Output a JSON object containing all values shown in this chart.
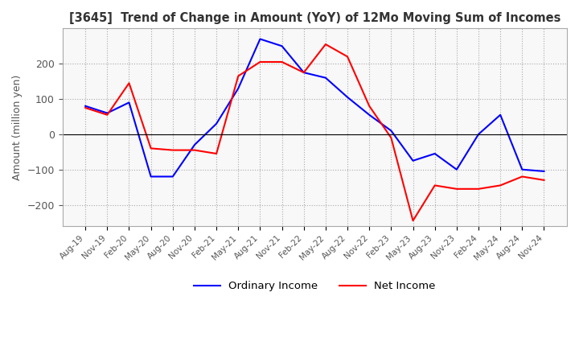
{
  "title": "[3645]  Trend of Change in Amount (YoY) of 12Mo Moving Sum of Incomes",
  "ylabel": "Amount (million yen)",
  "ylim": [
    -260,
    300
  ],
  "yticks": [
    -200,
    -100,
    0,
    100,
    200
  ],
  "legend_labels": [
    "Ordinary Income",
    "Net Income"
  ],
  "line_colors": [
    "#0000ff",
    "#ff0000"
  ],
  "x_labels": [
    "Aug-19",
    "Nov-19",
    "Feb-20",
    "May-20",
    "Aug-20",
    "Nov-20",
    "Feb-21",
    "May-21",
    "Aug-21",
    "Nov-21",
    "Feb-22",
    "May-22",
    "Aug-22",
    "Nov-22",
    "Feb-23",
    "May-23",
    "Aug-23",
    "Nov-23",
    "Feb-24",
    "May-24",
    "Aug-24",
    "Nov-24"
  ],
  "ordinary_income": [
    80,
    60,
    90,
    -120,
    -120,
    -30,
    30,
    130,
    270,
    250,
    175,
    160,
    105,
    55,
    10,
    -75,
    -55,
    -100,
    0,
    55,
    -100,
    -105
  ],
  "net_income": [
    75,
    55,
    145,
    -40,
    -45,
    -45,
    -55,
    165,
    205,
    205,
    175,
    255,
    220,
    80,
    -10,
    -245,
    -145,
    -155,
    -155,
    -145,
    -120,
    -130
  ],
  "background_color": "#f8f8f8"
}
